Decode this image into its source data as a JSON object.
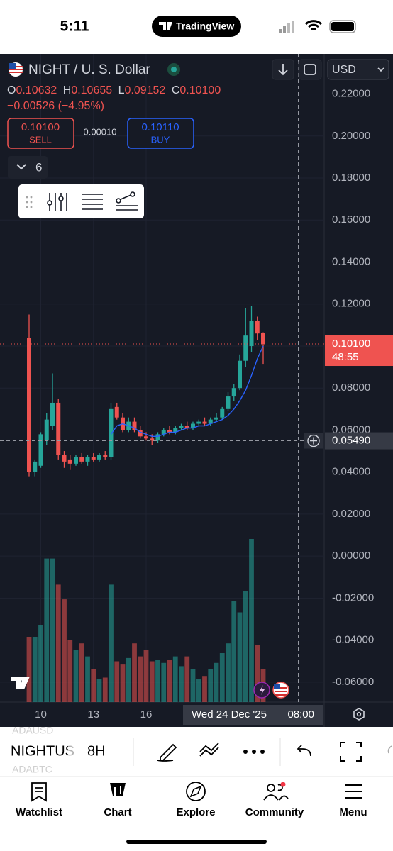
{
  "status_bar": {
    "time": "5:11",
    "app": "TradingView"
  },
  "header": {
    "symbol": "NIGHT / U. S. Dollar",
    "o_label": "O",
    "o": "0.10632",
    "h_label": "H",
    "h": "0.10655",
    "l_label": "L",
    "l": "0.09152",
    "c_label": "C",
    "c": "0.10100",
    "change": "−0.00526 (−4.95%)",
    "sell_price": "0.10100",
    "sell": "SELL",
    "spread": "0.00010",
    "buy_price": "0.10110",
    "buy": "BUY",
    "indicators": "6",
    "currency": "USD"
  },
  "chart_data": {
    "type": "candlestick",
    "up_color": "#26a69a",
    "down_color": "#ef5350",
    "ylim": [
      -0.0695,
      0.2391
    ],
    "yticks": [
      {
        "value": 0.22,
        "label": "0.22000"
      },
      {
        "value": 0.2,
        "label": "0.20000"
      },
      {
        "value": 0.18,
        "label": "0.18000"
      },
      {
        "value": 0.16,
        "label": "0.16000"
      },
      {
        "value": 0.14,
        "label": "0.14000"
      },
      {
        "value": 0.12,
        "label": "0.12000"
      },
      {
        "value": 0.1,
        "label": "0.10000"
      },
      {
        "value": 0.08,
        "label": "0.08000"
      },
      {
        "value": 0.06,
        "label": "0.06000"
      },
      {
        "value": 0.04,
        "label": "0.04000"
      },
      {
        "value": 0.02,
        "label": "0.02000"
      },
      {
        "value": 0,
        "label": "0.00000"
      },
      {
        "value": -0.02,
        "label": "-0.02000"
      },
      {
        "value": -0.04,
        "label": "-0.04000"
      },
      {
        "value": -0.06,
        "label": "-0.06000"
      }
    ],
    "xticks": [
      {
        "value": 2,
        "label": "10"
      },
      {
        "value": 11,
        "label": "13"
      },
      {
        "value": 20,
        "label": "16"
      }
    ],
    "open": [
      0.104,
      0.04,
      0.043,
      0.055,
      0.062,
      0.073,
      0.048,
      0.046,
      0.044,
      0.047,
      0.045,
      0.047,
      0.046,
      0.048,
      0.047,
      0.071,
      0.066,
      0.06,
      0.064,
      0.06,
      0.057,
      0.056,
      0.055,
      0.058,
      0.06,
      0.059,
      0.061,
      0.062,
      0.061,
      0.063,
      0.064,
      0.063,
      0.065,
      0.066,
      0.07,
      0.076,
      0.08,
      0.093,
      0.1,
      0.112,
      0.10632
    ],
    "high": [
      0.115,
      0.046,
      0.059,
      0.068,
      0.087,
      0.075,
      0.05,
      0.048,
      0.048,
      0.049,
      0.048,
      0.049,
      0.049,
      0.05,
      0.073,
      0.073,
      0.068,
      0.066,
      0.066,
      0.062,
      0.059,
      0.058,
      0.059,
      0.061,
      0.062,
      0.062,
      0.063,
      0.064,
      0.064,
      0.065,
      0.066,
      0.066,
      0.068,
      0.071,
      0.078,
      0.082,
      0.096,
      0.118,
      0.119,
      0.114,
      0.10655
    ],
    "low": [
      0.038,
      0.038,
      0.042,
      0.053,
      0.06,
      0.046,
      0.042,
      0.041,
      0.043,
      0.044,
      0.043,
      0.045,
      0.045,
      0.046,
      0.046,
      0.065,
      0.059,
      0.059,
      0.059,
      0.056,
      0.055,
      0.053,
      0.054,
      0.057,
      0.058,
      0.058,
      0.06,
      0.06,
      0.06,
      0.062,
      0.062,
      0.062,
      0.064,
      0.065,
      0.069,
      0.074,
      0.079,
      0.09,
      0.097,
      0.103,
      0.09152
    ],
    "close": [
      0.04,
      0.045,
      0.058,
      0.065,
      0.073,
      0.048,
      0.045,
      0.044,
      0.047,
      0.045,
      0.047,
      0.046,
      0.048,
      0.047,
      0.07,
      0.066,
      0.06,
      0.064,
      0.06,
      0.057,
      0.056,
      0.055,
      0.058,
      0.06,
      0.059,
      0.061,
      0.062,
      0.061,
      0.063,
      0.064,
      0.063,
      0.065,
      0.066,
      0.07,
      0.076,
      0.08,
      0.093,
      0.105,
      0.112,
      0.106,
      0.101
    ],
    "volume": [
      40,
      40,
      47,
      88,
      88,
      72,
      63,
      38,
      32,
      36,
      28,
      20,
      14,
      15,
      72,
      25,
      23,
      27,
      36,
      28,
      32,
      25,
      26,
      24,
      26,
      28,
      22,
      28,
      20,
      14,
      16,
      20,
      24,
      30,
      36,
      62,
      55,
      68,
      100,
      35,
      20
    ],
    "ma": [
      null,
      null,
      null,
      null,
      null,
      null,
      null,
      null,
      null,
      null,
      null,
      null,
      null,
      null,
      0.058,
      0.062,
      0.063,
      0.062,
      0.061,
      0.059,
      0.058,
      0.057,
      0.057,
      0.058,
      0.059,
      0.059,
      0.06,
      0.061,
      0.061,
      0.062,
      0.062,
      0.063,
      0.064,
      0.065,
      0.067,
      0.07,
      0.074,
      0.079,
      0.086,
      0.094,
      0.1
    ],
    "ma_color": "#2962ff",
    "last_price": {
      "value": 0.101,
      "label": "0.10100"
    },
    "countdown": "48:55",
    "crosshair": {
      "value": 0.0549,
      "label": "0.05490",
      "index": 46,
      "date": "Wed 24 Dec '25",
      "time": "08:00"
    }
  },
  "toolbar": {
    "ghost_top": "ADAUSD",
    "symbol": "NIGHTUS",
    "ghost_bottom": "ADABTC",
    "interval": "8H"
  },
  "tabs": [
    "Watchlist",
    "Chart",
    "Explore",
    "Community",
    "Menu"
  ]
}
